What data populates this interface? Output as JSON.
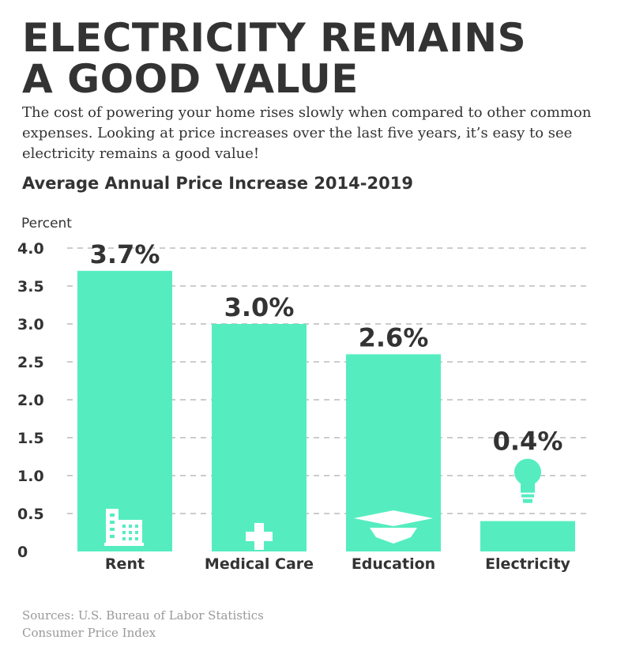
{
  "title_line1": "ELECTRICITY REMAINS",
  "title_line2": "A GOOD VALUE",
  "intro": "The cost of powering your home rises slowly when compared to other common expenses. Looking at price increases over the last five years, it’s easy to see electricity remains a good value!",
  "sources_line1": "Sources: U.S. Bureau of Labor Statistics",
  "sources_line2": "Consumer Price Index",
  "colors": {
    "bar": "#55edc0",
    "text": "#333333",
    "grid": "#cccccc",
    "muted": "#999999"
  },
  "chart_data": {
    "type": "bar",
    "title": "Average Annual Price Increase 2014-2019",
    "ylabel": "Percent",
    "xlabel": "",
    "ylim": [
      0,
      4
    ],
    "yticks": [
      "0",
      "0.5",
      "1.0",
      "1.5",
      "2.0",
      "2.5",
      "3.0",
      "3.5",
      "4.0"
    ],
    "grid": true,
    "categories": [
      "Rent",
      "Medical Care",
      "Education",
      "Electricity"
    ],
    "values": [
      3.7,
      3.0,
      2.6,
      0.4
    ],
    "value_labels": [
      "3.7%",
      "3.0%",
      "2.6%",
      "0.4%"
    ],
    "icons": [
      "building-icon",
      "medical-cross-icon",
      "graduation-cap-icon",
      "light-bulb-icon"
    ]
  }
}
